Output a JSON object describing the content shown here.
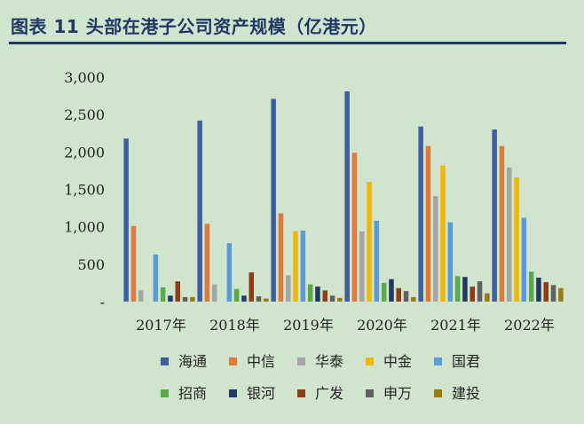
{
  "title": "图表 11 头部在港子公司资产规模（亿港元）",
  "chart_data": {
    "type": "bar",
    "title": "图表 11 头部在港子公司资产规模（亿港元）",
    "ylabel": "亿港元",
    "xlabel": "",
    "ylim": [
      0,
      3000
    ],
    "yticks": [
      0,
      500,
      1000,
      1500,
      2000,
      2500,
      3000
    ],
    "ytick_labels": [
      "-",
      "500",
      "1,000",
      "1,500",
      "2,000",
      "2,500",
      "3,000"
    ],
    "grid": false,
    "legend_position": "bottom",
    "categories": [
      "2017年",
      "2018年",
      "2019年",
      "2020年",
      "2021年",
      "2022年"
    ],
    "series": [
      {
        "name": "海通",
        "color": "#3d5fa0",
        "values": [
          2180,
          2420,
          2710,
          2810,
          2340,
          2300
        ]
      },
      {
        "name": "中信",
        "color": "#e07a38",
        "values": [
          1010,
          1040,
          1180,
          1990,
          2080,
          2080
        ]
      },
      {
        "name": "华泰",
        "color": "#a5a5a5",
        "values": [
          150,
          230,
          350,
          940,
          1410,
          1790
        ]
      },
      {
        "name": "中金",
        "color": "#f0b800",
        "values": [
          0,
          0,
          940,
          1600,
          1820,
          1660
        ]
      },
      {
        "name": "国君",
        "color": "#5b9bd5",
        "values": [
          630,
          780,
          950,
          1080,
          1060,
          1120
        ]
      },
      {
        "name": "招商",
        "color": "#5aab48",
        "values": [
          190,
          170,
          230,
          250,
          340,
          400
        ]
      },
      {
        "name": "银河",
        "color": "#213a63",
        "values": [
          80,
          80,
          200,
          300,
          330,
          320
        ]
      },
      {
        "name": "广发",
        "color": "#8e3d17",
        "values": [
          270,
          390,
          150,
          180,
          200,
          260
        ]
      },
      {
        "name": "申万",
        "color": "#616161",
        "values": [
          60,
          70,
          80,
          140,
          270,
          220
        ]
      },
      {
        "name": "建投",
        "color": "#977a10",
        "values": [
          60,
          40,
          50,
          60,
          110,
          180
        ]
      }
    ]
  }
}
